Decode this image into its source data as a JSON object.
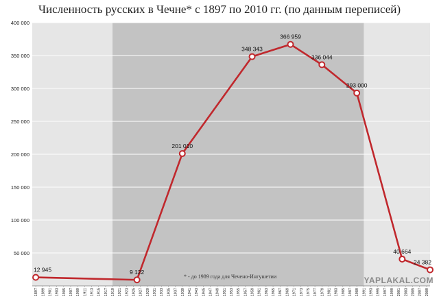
{
  "chart_data": {
    "type": "line",
    "title": "Численность русских в Чечне* с 1897 по 2010 гг. (по данным переписей)",
    "note": "* -  до 1989 года для Чечено-Ингушетии",
    "ylim": [
      0,
      400000
    ],
    "xlim": [
      1896,
      2010
    ],
    "yticks": [
      "400 000",
      "350 000",
      "300 000",
      "250 000",
      "200 000",
      "150 000",
      "100 000",
      "50 000"
    ],
    "ytick_values": [
      400000,
      350000,
      300000,
      250000,
      200000,
      150000,
      100000,
      50000
    ],
    "xtick_start": 1897,
    "xtick_end": 2009,
    "xtick_step": 2,
    "shaded_range": [
      1919,
      1991
    ],
    "grid": true,
    "color": "#c0282d",
    "series": [
      {
        "x": [
          1897,
          1926,
          1939,
          1959,
          1970,
          1979,
          1989,
          2002,
          2010
        ],
        "values": [
          12945,
          9122,
          201010,
          348343,
          366959,
          336044,
          293000,
          40664,
          24382
        ],
        "labels": [
          "12 945",
          "9 122",
          "201 010",
          "348 343",
          "366 959",
          "336 044",
          "293 000",
          "40 664",
          "24 382"
        ]
      }
    ]
  },
  "watermark": "YAPLAKAL.COM"
}
